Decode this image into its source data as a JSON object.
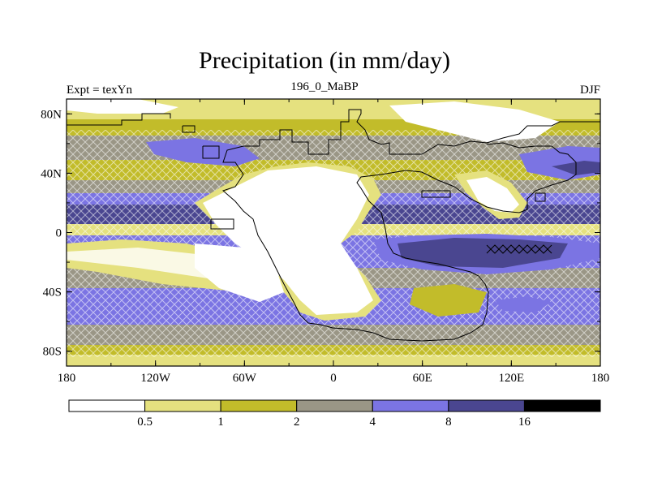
{
  "title": "Precipitation (in mm/day)",
  "left_label": "Expt = texYn",
  "center_label": "196_0_MaBP",
  "right_label": "DJF",
  "map": {
    "lat_ticks": [
      "80N",
      "40N",
      "0",
      "40S",
      "80S"
    ],
    "lon_ticks": [
      "180",
      "120W",
      "60W",
      "0",
      "60E",
      "120E",
      "180"
    ],
    "lat_range": [
      -90,
      90
    ],
    "lon_range": [
      -180,
      180
    ]
  },
  "colorbar": {
    "colors": [
      "#ffffff",
      "#e5e17f",
      "#c2bc2a",
      "#9a9686",
      "#7b74e3",
      "#4a4690",
      "#000000"
    ],
    "labels": [
      "0.5",
      "1",
      "2",
      "4",
      "8",
      "16"
    ]
  }
}
